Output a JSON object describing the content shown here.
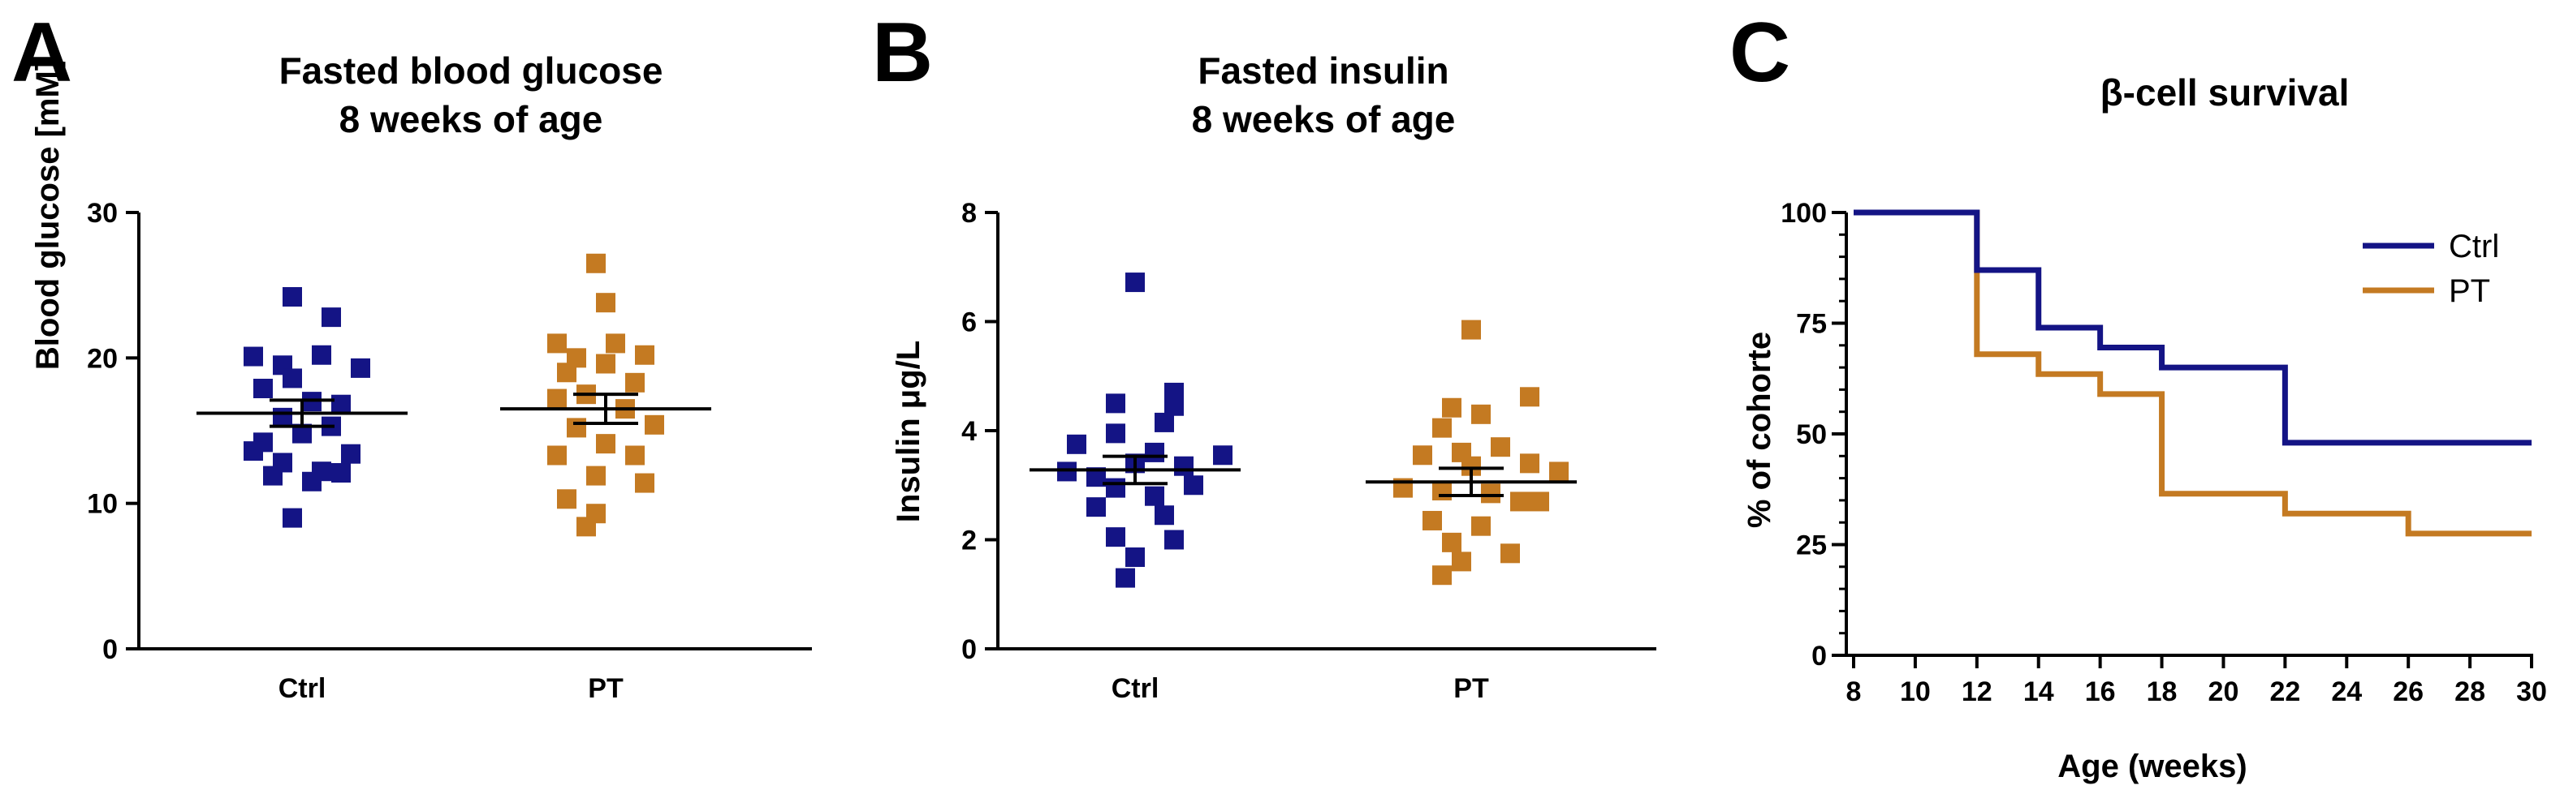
{
  "colors": {
    "ctrl": "#141485",
    "pt": "#c47a22",
    "axis": "#000000"
  },
  "chart_data": [
    {
      "panel": "A",
      "type": "scatter",
      "title": [
        "Fasted blood glucose",
        "8 weeks of age"
      ],
      "xlabel": "",
      "ylabel": "Blood glucose [mM]",
      "categories": [
        "Ctrl",
        "PT"
      ],
      "ylim": [
        0,
        30
      ],
      "yticks": [
        "0",
        "10",
        "20",
        "30"
      ],
      "series": [
        {
          "category": "Ctrl",
          "points": [
            {
              "dx": 0.25,
              "y": 24.2
            },
            {
              "dx": 0.45,
              "y": 22.8
            },
            {
              "dx": 0.6,
              "y": 19.3
            },
            {
              "dx": 0.05,
              "y": 20.1
            },
            {
              "dx": 0.2,
              "y": 19.5
            },
            {
              "dx": 0.4,
              "y": 20.2
            },
            {
              "dx": 0.25,
              "y": 18.6
            },
            {
              "dx": 0.1,
              "y": 17.9
            },
            {
              "dx": 0.35,
              "y": 17.0
            },
            {
              "dx": 0.5,
              "y": 16.8
            },
            {
              "dx": 0.2,
              "y": 15.9
            },
            {
              "dx": 0.45,
              "y": 15.3
            },
            {
              "dx": 0.1,
              "y": 14.2
            },
            {
              "dx": 0.3,
              "y": 14.8
            },
            {
              "dx": 0.55,
              "y": 13.4
            },
            {
              "dx": 0.05,
              "y": 13.6
            },
            {
              "dx": 0.2,
              "y": 12.8
            },
            {
              "dx": 0.4,
              "y": 12.2
            },
            {
              "dx": 0.15,
              "y": 11.9
            },
            {
              "dx": 0.35,
              "y": 11.5
            },
            {
              "dx": 0.25,
              "y": 9.0
            },
            {
              "dx": 0.5,
              "y": 12.1
            }
          ],
          "mean": 16.2,
          "sem": 0.9
        },
        {
          "category": "PT",
          "points": [
            {
              "dx": 0.25,
              "y": 26.5
            },
            {
              "dx": 0.3,
              "y": 23.8
            },
            {
              "dx": 0.05,
              "y": 21.0
            },
            {
              "dx": 0.35,
              "y": 21.0
            },
            {
              "dx": 0.5,
              "y": 20.2
            },
            {
              "dx": 0.15,
              "y": 20.0
            },
            {
              "dx": 0.1,
              "y": 19.0
            },
            {
              "dx": 0.3,
              "y": 19.6
            },
            {
              "dx": 0.45,
              "y": 18.3
            },
            {
              "dx": 0.2,
              "y": 17.5
            },
            {
              "dx": 0.05,
              "y": 17.2
            },
            {
              "dx": 0.4,
              "y": 16.5
            },
            {
              "dx": 0.55,
              "y": 15.4
            },
            {
              "dx": 0.15,
              "y": 15.2
            },
            {
              "dx": 0.3,
              "y": 14.1
            },
            {
              "dx": 0.05,
              "y": 13.3
            },
            {
              "dx": 0.45,
              "y": 13.3
            },
            {
              "dx": 0.25,
              "y": 11.9
            },
            {
              "dx": 0.5,
              "y": 11.4
            },
            {
              "dx": 0.1,
              "y": 10.3
            },
            {
              "dx": 0.25,
              "y": 9.3
            },
            {
              "dx": 0.2,
              "y": 8.4
            }
          ],
          "mean": 16.5,
          "sem": 1.0
        }
      ]
    },
    {
      "panel": "B",
      "type": "scatter",
      "title": [
        "Fasted insulin",
        "8 weeks of age"
      ],
      "xlabel": "",
      "ylabel": "Insulin μg/L",
      "categories": [
        "Ctrl",
        "PT"
      ],
      "ylim": [
        0,
        8
      ],
      "yticks": [
        "0",
        "2",
        "4",
        "6",
        "8"
      ],
      "series": [
        {
          "category": "Ctrl",
          "points": [
            {
              "dx": 0.3,
              "y": 6.72
            },
            {
              "dx": 0.5,
              "y": 4.7
            },
            {
              "dx": 0.5,
              "y": 4.45
            },
            {
              "dx": 0.2,
              "y": 4.5
            },
            {
              "dx": 0.45,
              "y": 4.15
            },
            {
              "dx": 0.0,
              "y": 3.75
            },
            {
              "dx": 0.2,
              "y": 3.95
            },
            {
              "dx": 0.4,
              "y": 3.6
            },
            {
              "dx": 0.75,
              "y": 3.55
            },
            {
              "dx": 0.3,
              "y": 3.4
            },
            {
              "dx": 0.55,
              "y": 3.35
            },
            {
              "dx": -0.05,
              "y": 3.25
            },
            {
              "dx": 0.1,
              "y": 3.15
            },
            {
              "dx": 0.6,
              "y": 3.0
            },
            {
              "dx": 0.2,
              "y": 2.95
            },
            {
              "dx": 0.4,
              "y": 2.8
            },
            {
              "dx": 0.45,
              "y": 2.45
            },
            {
              "dx": 0.1,
              "y": 2.6
            },
            {
              "dx": 0.2,
              "y": 2.05
            },
            {
              "dx": 0.5,
              "y": 2.0
            },
            {
              "dx": 0.3,
              "y": 1.68
            },
            {
              "dx": 0.25,
              "y": 1.3
            }
          ],
          "mean": 3.28,
          "sem": 0.25
        },
        {
          "category": "PT",
          "points": [
            {
              "dx": 0.3,
              "y": 5.85
            },
            {
              "dx": 0.6,
              "y": 4.62
            },
            {
              "dx": 0.2,
              "y": 4.42
            },
            {
              "dx": 0.35,
              "y": 4.3
            },
            {
              "dx": 0.15,
              "y": 4.05
            },
            {
              "dx": 0.45,
              "y": 3.7
            },
            {
              "dx": 0.25,
              "y": 3.6
            },
            {
              "dx": 0.05,
              "y": 3.55
            },
            {
              "dx": 0.6,
              "y": 3.4
            },
            {
              "dx": 0.75,
              "y": 3.25
            },
            {
              "dx": 0.3,
              "y": 3.35
            },
            {
              "dx": -0.05,
              "y": 2.95
            },
            {
              "dx": 0.15,
              "y": 2.9
            },
            {
              "dx": 0.4,
              "y": 2.85
            },
            {
              "dx": 0.55,
              "y": 2.7
            },
            {
              "dx": 0.65,
              "y": 2.7
            },
            {
              "dx": 0.1,
              "y": 2.35
            },
            {
              "dx": 0.35,
              "y": 2.25
            },
            {
              "dx": 0.2,
              "y": 1.95
            },
            {
              "dx": 0.5,
              "y": 1.75
            },
            {
              "dx": 0.25,
              "y": 1.6
            },
            {
              "dx": 0.15,
              "y": 1.35
            }
          ],
          "mean": 3.06,
          "sem": 0.25
        }
      ]
    },
    {
      "panel": "C",
      "type": "line",
      "title": [
        "β-cell survival"
      ],
      "xlabel": "Age (weeks)",
      "ylabel": "% of cohorte",
      "xlim": [
        8,
        30
      ],
      "ylim": [
        0,
        100
      ],
      "xticks": [
        "8",
        "10",
        "12",
        "14",
        "16",
        "18",
        "20",
        "22",
        "24",
        "26",
        "28",
        "30"
      ],
      "yticks": [
        "0",
        "25",
        "50",
        "75",
        "100"
      ],
      "legend": "top-right",
      "series": [
        {
          "name": "Ctrl",
          "steps": [
            [
              8,
              100
            ],
            [
              12,
              87
            ],
            [
              14,
              74
            ],
            [
              16,
              69.5
            ],
            [
              18,
              65
            ],
            [
              22,
              48
            ],
            [
              30,
              48
            ]
          ]
        },
        {
          "name": "PT",
          "steps": [
            [
              8,
              100
            ],
            [
              12,
              68
            ],
            [
              14,
              63.5
            ],
            [
              16,
              59
            ],
            [
              18,
              36.5
            ],
            [
              22,
              32
            ],
            [
              26,
              27.5
            ],
            [
              30,
              27.5
            ]
          ]
        }
      ]
    }
  ]
}
